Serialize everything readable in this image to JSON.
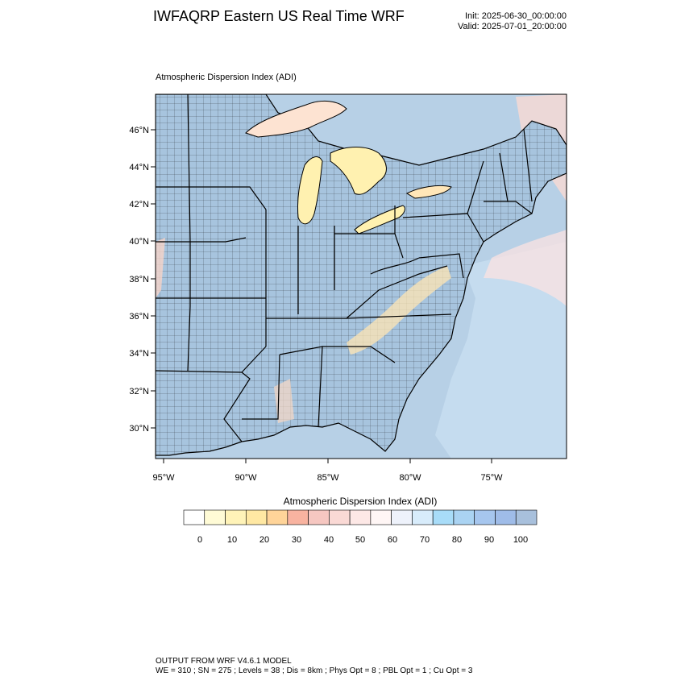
{
  "header": {
    "title": "IWFAQRP Eastern US Real Time WRF",
    "init_label": "Init: 2025-06-30_00:00:00",
    "valid_label": "Valid: 2025-07-01_20:00:00"
  },
  "map": {
    "field_title": "Atmospheric Dispersion Index   (ADI)",
    "lat_labels": [
      "30°N",
      "32°N",
      "34°N",
      "36°N",
      "38°N",
      "40°N",
      "42°N",
      "44°N",
      "46°N"
    ],
    "lon_labels": [
      "95°W",
      "90°W",
      "85°W",
      "80°W",
      "75°W"
    ],
    "colors": {
      "land": "#a7c4de",
      "water_deep": "#a9c6e0",
      "lake_warm": "#fff1b0",
      "border": "#000000"
    }
  },
  "colorbar": {
    "title": "Atmospheric Dispersion Index  (ADI)",
    "tick_labels": [
      "0",
      "10",
      "20",
      "30",
      "40",
      "50",
      "60",
      "70",
      "80",
      "90",
      "100"
    ],
    "colors": [
      "#ffffff",
      "#fffbd6",
      "#fff3b8",
      "#ffe8a3",
      "#ffd499",
      "#f8b3a0",
      "#f6c7c1",
      "#fad9d5",
      "#fde8e6",
      "#fff6f5",
      "#eef2fb",
      "#d8ecfb",
      "#a8dcf8",
      "#aad3f2",
      "#a6c6ee",
      "#9fbce8",
      "#a8c0dc"
    ]
  },
  "footer": {
    "line1": "OUTPUT FROM WRF V4.6.1 MODEL",
    "line2": "WE = 310 ; SN = 275 ; Levels = 38 ; Dis = 8km ; Phys Opt = 8 ; PBL Opt = 1 ; Cu Opt = 3"
  }
}
